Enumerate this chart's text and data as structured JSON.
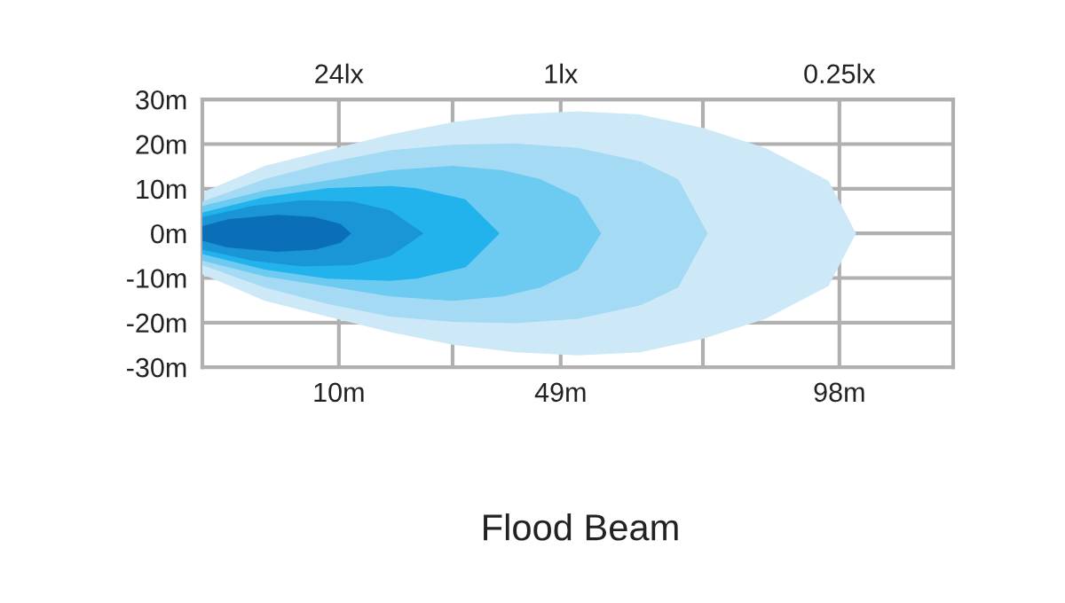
{
  "chart_data": {
    "type": "area",
    "title": "Flood Beam",
    "xlim": [
      -14,
      118
    ],
    "xticks": [
      {
        "value": 10,
        "label": "10m"
      },
      {
        "value": 30,
        "label": null
      },
      {
        "value": 49,
        "label": "49m"
      },
      {
        "value": 74,
        "label": null
      },
      {
        "value": 98,
        "label": "98m"
      }
    ],
    "annotations": [
      "24lx",
      "1lx",
      "0.25lx"
    ],
    "ylim": [
      -30,
      30
    ],
    "yticks": [
      {
        "value": 30,
        "label": "30m"
      },
      {
        "value": 20,
        "label": "20m"
      },
      {
        "value": 10,
        "label": "10m"
      },
      {
        "value": 0,
        "label": "0m"
      },
      {
        "value": -10,
        "label": "-10m"
      },
      {
        "value": -20,
        "label": "-20m"
      },
      {
        "value": -30,
        "label": "-30m"
      }
    ],
    "grid": true,
    "legend": false,
    "series": [
      {
        "color": "#cde9f8",
        "x": [
          -14,
          -3,
          8,
          19,
          30,
          41,
          52,
          63,
          74,
          85,
          96,
          100.8
        ],
        "values": [
          9,
          15,
          18.5,
          22,
          24.8,
          26.5,
          27.2,
          26.5,
          23.5,
          19,
          11.7,
          0
        ]
      },
      {
        "color": "#cde9f8",
        "x": [
          -14,
          -3,
          8,
          19,
          30,
          41,
          52,
          63,
          74,
          85,
          96,
          100.8
        ],
        "values": [
          -9,
          -15,
          -18.5,
          -22,
          -24.8,
          -26.5,
          -27.2,
          -26.5,
          -23.5,
          -19,
          -11.7,
          0
        ]
      },
      {
        "color": "#a5daf4",
        "x": [
          -14,
          -3,
          8,
          19,
          30,
          41,
          52,
          63,
          69.6,
          74.7
        ],
        "values": [
          7,
          12,
          15.7,
          18.5,
          19.7,
          20,
          19,
          16,
          12,
          0
        ]
      },
      {
        "color": "#a5daf4",
        "x": [
          -14,
          -3,
          8,
          19,
          30,
          41,
          52,
          63,
          69.6,
          74.7
        ],
        "values": [
          -7,
          -12,
          -15.7,
          -18.5,
          -19.7,
          -20,
          -19,
          -16,
          -12,
          0
        ]
      },
      {
        "color": "#6dcaf0",
        "x": [
          -14,
          -3,
          8,
          19,
          30,
          38.8,
          45.4,
          52,
          56
        ],
        "values": [
          6,
          9.5,
          11.7,
          14,
          15,
          14,
          12,
          8,
          0
        ]
      },
      {
        "color": "#6dcaf0",
        "x": [
          -14,
          -3,
          8,
          19,
          30,
          38.8,
          45.4,
          52,
          56
        ],
        "values": [
          -6,
          -9.5,
          -11.7,
          -14,
          -15,
          -14,
          -12,
          -8,
          0
        ]
      },
      {
        "color": "#22b3ec",
        "x": [
          -14,
          -3,
          8,
          19,
          23.6,
          32.2,
          38.1
        ],
        "values": [
          4.5,
          8,
          10,
          10.5,
          10,
          7.5,
          0
        ]
      },
      {
        "color": "#22b3ec",
        "x": [
          -14,
          -3,
          8,
          19,
          23.6,
          32.2,
          38.1
        ],
        "values": [
          -4.5,
          -8,
          -10,
          -10.5,
          -10,
          -7.5,
          0
        ]
      },
      {
        "color": "#1a96d6",
        "x": [
          -14,
          -5.2,
          3.6,
          12.4,
          19,
          24.7
        ],
        "values": [
          3.5,
          6,
          7.3,
          7,
          5,
          0
        ]
      },
      {
        "color": "#1a96d6",
        "x": [
          -14,
          -5.2,
          3.6,
          12.4,
          19,
          24.7
        ],
        "values": [
          -3.5,
          -6,
          -7.3,
          -7,
          -5,
          0
        ]
      },
      {
        "color": "#0b6fb8",
        "x": [
          -14,
          -9.6,
          -0.8,
          5.8,
          10.2,
          12
        ],
        "values": [
          1.5,
          3,
          4,
          3.5,
          2,
          0
        ]
      },
      {
        "color": "#0b6fb8",
        "x": [
          -14,
          -9.6,
          -0.8,
          5.8,
          10.2,
          12
        ],
        "values": [
          -1.5,
          -3,
          -4,
          -3.5,
          -2,
          0
        ]
      }
    ]
  }
}
